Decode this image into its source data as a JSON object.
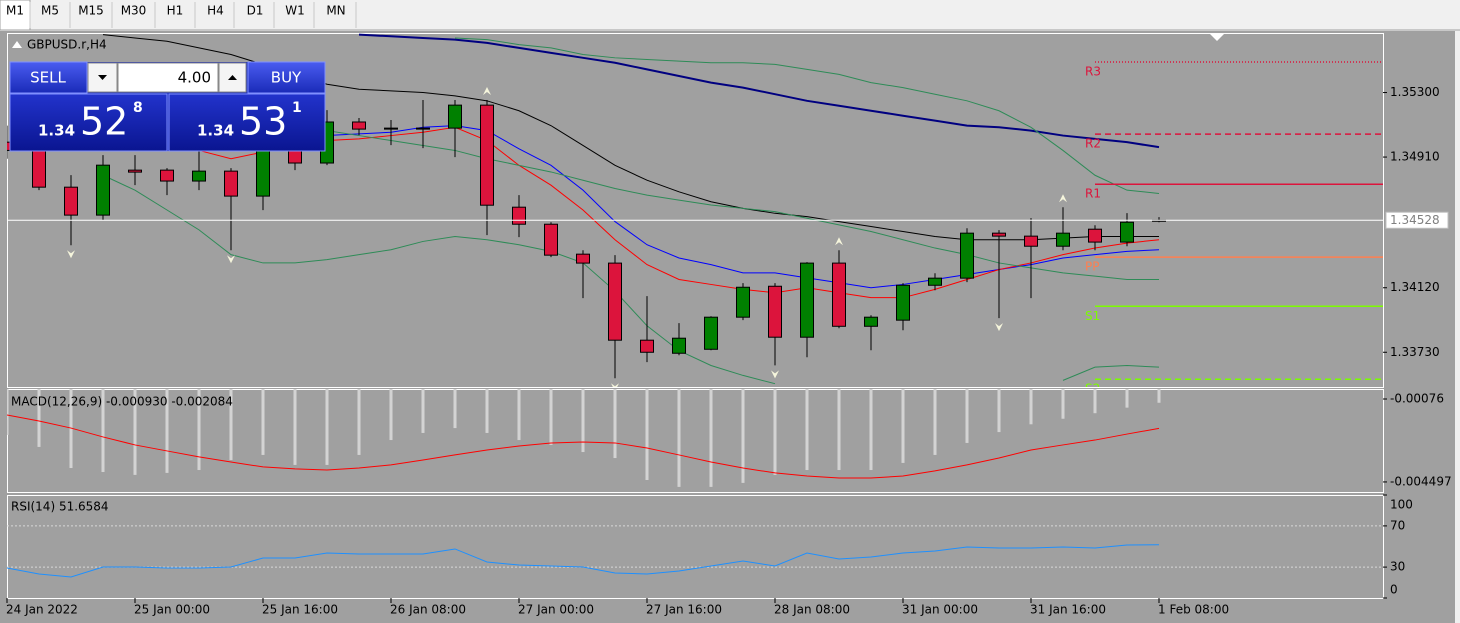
{
  "toolbar": {
    "timeframes": [
      "M1",
      "M5",
      "M15",
      "M30",
      "H1",
      "H4",
      "D1",
      "W1",
      "MN"
    ],
    "active": 0
  },
  "trade_panel": {
    "sell_label": "SELL",
    "volume": "4.00",
    "buy_label": "BUY",
    "bid": {
      "prefix": "1.34",
      "pips": "52",
      "fraction": "8"
    },
    "ask": {
      "prefix": "1.34",
      "pips": "53",
      "fraction": "1"
    }
  },
  "chart_data": [
    {
      "type": "candlestick",
      "title": "GBPUSD.r,H4",
      "categories": [
        "24 Jan 2022",
        null,
        null,
        null,
        "25 Jan 00:00",
        null,
        null,
        null,
        "25 Jan 16:00",
        null,
        null,
        null,
        "26 Jan 08:00",
        null,
        null,
        null,
        "27 Jan 00:00",
        null,
        null,
        null,
        "27 Jan 16:00",
        null,
        null,
        null,
        "28 Jan 08:00",
        null,
        null,
        null,
        "31 Jan 00:00",
        null,
        null,
        null,
        "31 Jan 16:00",
        null,
        null,
        null,
        "1 Feb 08:00"
      ],
      "open": [
        1.35,
        1.34952,
        1.34728,
        1.34559,
        1.34831,
        1.34831,
        1.34765,
        1.34825,
        1.34674,
        1.35013,
        1.34874,
        1.35122,
        1.35085,
        1.35079,
        1.35085,
        1.35224,
        1.34607,
        1.34504,
        1.34323,
        1.34269,
        1.33803,
        1.33724,
        1.33748,
        1.33942,
        1.34129,
        1.33821,
        1.34269,
        1.33887,
        1.33924,
        1.34135,
        1.34178,
        1.3445,
        1.34432,
        1.34371,
        1.34474,
        1.34396,
        1.34522
      ],
      "high": [
        1.351,
        1.35013,
        1.34801,
        1.34922,
        1.34922,
        1.34843,
        1.34952,
        1.34843,
        1.34982,
        1.35134,
        1.35194,
        1.35146,
        1.35134,
        1.35255,
        1.35255,
        1.35255,
        1.3468,
        1.34516,
        1.34347,
        1.34317,
        1.34069,
        1.33906,
        1.33948,
        1.34148,
        1.34148,
        1.34275,
        1.34347,
        1.33954,
        1.34148,
        1.34208,
        1.3448,
        1.34468,
        1.34541,
        1.34607,
        1.34498,
        1.34571,
        1.34547
      ],
      "low": [
        1.349,
        1.3471,
        1.34377,
        1.34529,
        1.3474,
        1.3468,
        1.3471,
        1.34347,
        1.34589,
        1.34831,
        1.34861,
        1.35043,
        1.34982,
        1.34964,
        1.3491,
        1.34438,
        1.34426,
        1.34305,
        1.34057,
        1.33573,
        1.3367,
        1.33712,
        1.33742,
        1.33924,
        1.33651,
        1.337,
        1.33875,
        1.33742,
        1.33863,
        1.34105,
        1.34154,
        1.33936,
        1.34057,
        1.34347,
        1.34347,
        1.34371,
        1.34516
      ],
      "close": [
        1.3495,
        1.34728,
        1.34559,
        1.34861,
        1.34819,
        1.34765,
        1.34825,
        1.34674,
        1.34952,
        1.34874,
        1.35122,
        1.35079,
        1.35079,
        1.35085,
        1.35224,
        1.34619,
        1.34504,
        1.34317,
        1.34269,
        1.33803,
        1.3373,
        1.33815,
        1.33942,
        1.34123,
        1.33821,
        1.34269,
        1.33887,
        1.33942,
        1.34135,
        1.34178,
        1.3445,
        1.34432,
        1.34371,
        1.3445,
        1.34396,
        1.34516,
        1.34528
      ],
      "up_color": "#008000",
      "down_color": "#dc143c",
      "overlays": [
        {
          "color": "#000080",
          "width": 2,
          "values": [
            null,
            null,
            null,
            null,
            null,
            null,
            null,
            null,
            null,
            null,
            null,
            1.3565,
            1.3564,
            1.3563,
            1.3562,
            1.356,
            1.3557,
            1.3554,
            1.3551,
            1.3548,
            1.3544,
            1.354,
            1.3536,
            1.3533,
            1.3529,
            1.3525,
            1.3522,
            1.3519,
            1.3516,
            1.3513,
            1.351,
            1.3509,
            1.3507,
            1.3504,
            1.3502,
            1.35,
            1.3497
          ]
        },
        {
          "color": "#000000",
          "width": 1,
          "values": [
            null,
            null,
            null,
            1.3565,
            1.3563,
            1.3561,
            1.3557,
            1.3553,
            1.3547,
            1.3541,
            1.3535,
            1.3532,
            1.3531,
            1.353,
            1.3528,
            1.3525,
            1.3519,
            1.351,
            1.3498,
            1.3486,
            1.3477,
            1.347,
            1.3464,
            1.346,
            1.3457,
            1.3455,
            1.3452,
            1.3449,
            1.3446,
            1.3443,
            1.3441,
            1.3441,
            1.3441,
            1.3442,
            1.3443,
            1.3443,
            1.3443
          ]
        },
        {
          "color": "#0000ff",
          "width": 1,
          "values": [
            null,
            null,
            null,
            null,
            null,
            null,
            null,
            null,
            null,
            null,
            1.3504,
            1.3505,
            1.3506,
            1.3509,
            1.351,
            1.3507,
            1.3496,
            1.3486,
            1.3471,
            1.3452,
            1.3438,
            1.343,
            1.3426,
            1.3421,
            1.3421,
            1.3418,
            1.3415,
            1.3412,
            1.3414,
            1.3417,
            1.342,
            1.3423,
            1.3426,
            1.343,
            1.3432,
            1.3434,
            1.3435
          ]
        },
        {
          "color": "#ff0000",
          "width": 1,
          "values": [
            null,
            null,
            null,
            null,
            null,
            null,
            1.3495,
            1.349,
            1.3494,
            1.3498,
            1.3501,
            1.3502,
            1.3504,
            1.3506,
            1.3509,
            1.3501,
            1.3486,
            1.3474,
            1.3459,
            1.3441,
            1.3426,
            1.3417,
            1.3414,
            1.3411,
            1.3409,
            1.3412,
            1.3409,
            1.3406,
            1.3406,
            1.3411,
            1.3417,
            1.3423,
            1.3427,
            1.3432,
            1.3436,
            1.3439,
            1.3441
          ]
        },
        {
          "color": "#2e8b57",
          "width": 1,
          "values": [
            null,
            null,
            null,
            null,
            null,
            null,
            null,
            null,
            null,
            null,
            null,
            null,
            null,
            null,
            1.3563,
            1.3562,
            1.3559,
            1.3557,
            1.3553,
            1.3551,
            1.355,
            1.3549,
            1.3548,
            1.3548,
            1.3547,
            1.3544,
            1.3541,
            1.3536,
            1.3533,
            1.3529,
            1.3525,
            1.3519,
            1.3509,
            1.3495,
            1.348,
            1.3471,
            1.3469
          ]
        },
        {
          "color": "#2e8b57",
          "width": 1,
          "values": [
            null,
            null,
            null,
            null,
            null,
            null,
            null,
            null,
            null,
            null,
            1.3507,
            1.3504,
            1.3501,
            1.3498,
            1.3495,
            1.349,
            1.3486,
            1.3482,
            1.3477,
            1.3472,
            1.3468,
            1.3465,
            1.3462,
            1.346,
            1.3458,
            1.3454,
            1.345,
            1.3446,
            1.3441,
            1.3436,
            1.3432,
            1.3427,
            1.3424,
            1.3421,
            1.3419,
            1.3417,
            1.3417
          ]
        },
        {
          "color": "#2e8b57",
          "width": 1,
          "values": [
            null,
            null,
            null,
            1.348,
            1.3471,
            1.3459,
            1.3447,
            1.3432,
            1.3427,
            1.3427,
            1.3429,
            1.3432,
            1.3435,
            1.344,
            1.3443,
            1.3441,
            1.3438,
            1.3434,
            1.3427,
            1.341,
            1.3389,
            1.3374,
            1.3365,
            1.3359,
            1.3354,
            null,
            null,
            null,
            null,
            null,
            null,
            null,
            null,
            1.3356,
            1.3364,
            1.3365,
            1.3364
          ]
        }
      ],
      "fractal_up": [
        null,
        null,
        null,
        null,
        null,
        null,
        null,
        null,
        null,
        null,
        null,
        null,
        null,
        null,
        null,
        1.35255,
        null,
        null,
        null,
        null,
        null,
        null,
        null,
        null,
        null,
        null,
        1.34347,
        null,
        null,
        null,
        null,
        null,
        null,
        1.34607,
        null,
        null,
        null
      ],
      "fractal_down": [
        null,
        null,
        1.34377,
        null,
        null,
        null,
        null,
        1.34347,
        null,
        null,
        null,
        null,
        null,
        null,
        null,
        null,
        null,
        null,
        null,
        1.33573,
        null,
        null,
        null,
        null,
        1.33651,
        null,
        null,
        null,
        null,
        null,
        null,
        1.33936,
        null,
        null,
        null,
        null,
        null
      ],
      "levels": [
        {
          "label": "R3",
          "value": 1.35485,
          "color": "#dc143c",
          "dash": "1,2"
        },
        {
          "label": "R2",
          "value": 1.35049,
          "color": "#dc143c",
          "dash": "6,4"
        },
        {
          "label": "R1",
          "value": 1.34746,
          "color": "#dc143c",
          "dash": "none"
        },
        {
          "label": "PP",
          "value": 1.34305,
          "color": "#ff7f50",
          "dash": "none"
        },
        {
          "label": "S1",
          "value": 1.34008,
          "color": "#7cfc00",
          "dash": "none"
        },
        {
          "label": "S2",
          "value": 1.33567,
          "color": "#7cfc00",
          "dash": "6,4"
        }
      ],
      "last_price": 1.34528,
      "ylim": [
        1.3352,
        1.3566
      ],
      "yticks": [
        {
          "value": 1.353,
          "label": "1.35300"
        },
        {
          "value": 1.3491,
          "label": "1.34910"
        },
        {
          "value": 1.3412,
          "label": "1.34120"
        },
        {
          "value": 1.3373,
          "label": "1.33730"
        }
      ]
    },
    {
      "type": "macd",
      "title": "MACD(12,26,9) -0.000930 -0.002084",
      "color": "#d3d3d3",
      "values": [
        -0.00238,
        -0.00292,
        -0.00387,
        -0.00405,
        -0.00418,
        -0.00409,
        -0.00396,
        -0.00351,
        -0.00328,
        -0.00373,
        -0.00373,
        -0.00328,
        -0.00261,
        -0.00229,
        -0.00207,
        -0.00229,
        -0.00261,
        -0.00283,
        -0.00315,
        -0.00342,
        -0.00441,
        -0.00472,
        -0.00472,
        -0.00454,
        -0.00418,
        -0.00396,
        -0.00396,
        -0.00396,
        -0.00364,
        -0.00328,
        -0.00274,
        -0.00225,
        -0.0019,
        -0.00165,
        -0.0014,
        -0.00115,
        -0.00093
      ],
      "signal": {
        "color": "#ff0000",
        "values": [
          -0.00148,
          -0.00175,
          -0.00207,
          -0.00247,
          -0.00283,
          -0.0031,
          -0.00337,
          -0.0036,
          -0.00382,
          -0.00391,
          -0.00396,
          -0.00387,
          -0.00373,
          -0.00351,
          -0.00328,
          -0.00306,
          -0.00288,
          -0.00274,
          -0.0027,
          -0.00274,
          -0.00297,
          -0.00328,
          -0.0036,
          -0.00387,
          -0.00409,
          -0.00423,
          -0.00432,
          -0.00432,
          -0.00423,
          -0.004,
          -0.00373,
          -0.00342,
          -0.00306,
          -0.00283,
          -0.00261,
          -0.00234,
          -0.002084
        ]
      },
      "ylim": [
        -0.00495,
        -0.00031
      ],
      "yticks": [
        -0.00076,
        -0.004497
      ]
    },
    {
      "type": "line",
      "title": "RSI(14) 51.6584",
      "series": [
        {
          "color": "#1e90ff",
          "values": [
            29.1,
            23.3,
            20.4,
            30.1,
            30.1,
            29.1,
            29.1,
            30.1,
            38.8,
            38.8,
            43.7,
            42.7,
            42.7,
            42.7,
            47.6,
            35.0,
            32.0,
            31.1,
            30.1,
            24.3,
            23.3,
            26.2,
            31.1,
            35.9,
            31.1,
            43.7,
            37.9,
            39.8,
            43.7,
            45.6,
            49.5,
            48.5,
            48.5,
            49.5,
            48.5,
            51.5,
            51.6584
          ]
        }
      ],
      "levels": [
        70,
        30
      ],
      "ylim": [
        0,
        100
      ],
      "yticks": [
        100,
        70,
        30,
        0
      ]
    }
  ]
}
